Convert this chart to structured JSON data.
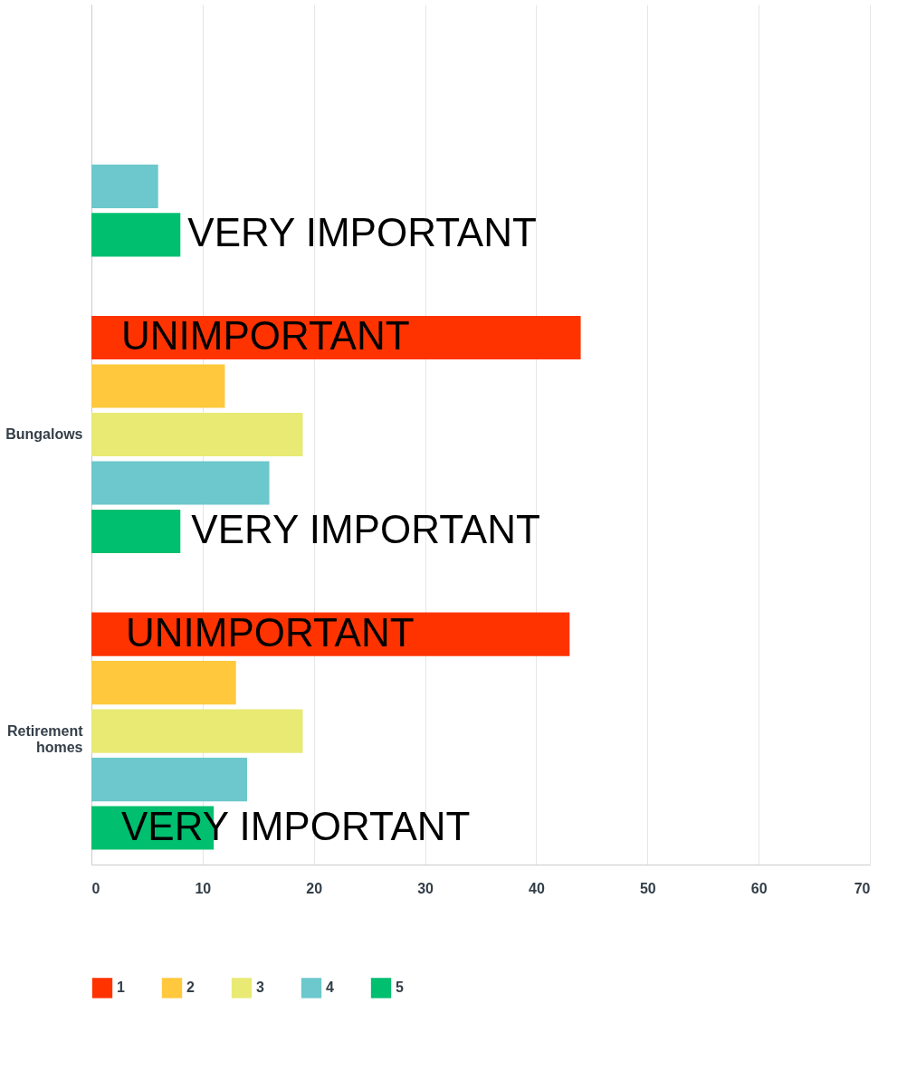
{
  "chart_data": {
    "type": "bar",
    "orientation": "horizontal",
    "categories": [
      null,
      "Bungalows",
      "Retirement homes"
    ],
    "series": [
      {
        "name": "1",
        "color": "#ff3300",
        "values": [
          null,
          44,
          43
        ]
      },
      {
        "name": "2",
        "color": "#ffc83d",
        "values": [
          null,
          12,
          13
        ]
      },
      {
        "name": "3",
        "color": "#e8ea74",
        "values": [
          null,
          19,
          19
        ]
      },
      {
        "name": "4",
        "color": "#6cc8cc",
        "values": [
          6,
          16,
          14
        ]
      },
      {
        "name": "5",
        "color": "#00bf6f",
        "values": [
          8,
          8,
          11
        ]
      }
    ],
    "xlim": [
      0,
      70
    ],
    "xticks": [
      0,
      10,
      20,
      30,
      40,
      50,
      60,
      70
    ],
    "grid": "x",
    "legend": "bottom",
    "annotations": [
      "VERY IMPORTANT",
      "UNIMPORTANT",
      "VERY IMPORTANT",
      "UNIMPORTANT",
      "VERY IMPORTANT"
    ]
  }
}
